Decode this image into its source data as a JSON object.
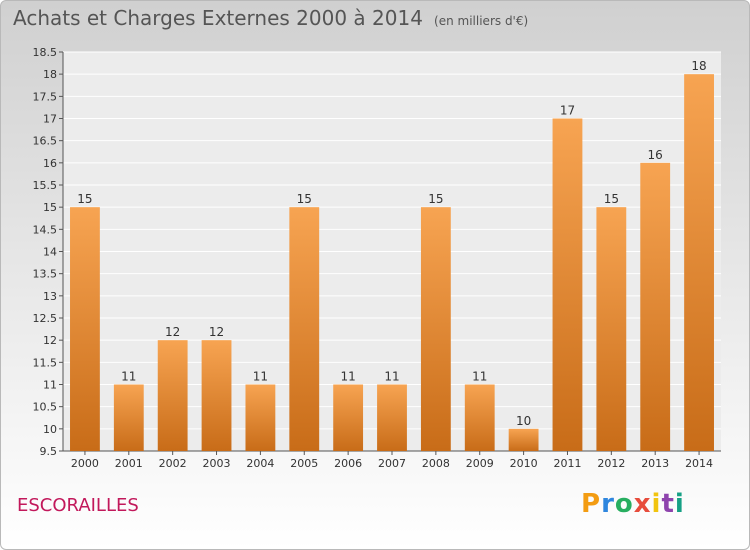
{
  "title": "Achats et Charges Externes 2000 à 2014",
  "unit": "(en milliers d'€)",
  "city": "ESCORAILLES",
  "logo": "Proxiti",
  "colors": {
    "bar_top": "#f7a452",
    "bar_bottom": "#c86c18",
    "city": "#c2185b"
  },
  "chart_data": {
    "type": "bar",
    "title": "Achats et Charges Externes 2000 à 2014",
    "categories": [
      "2000",
      "2001",
      "2002",
      "2003",
      "2004",
      "2005",
      "2006",
      "2007",
      "2008",
      "2009",
      "2010",
      "2011",
      "2012",
      "2013",
      "2014"
    ],
    "values": [
      15,
      11,
      12,
      12,
      11,
      15,
      11,
      11,
      15,
      11,
      10,
      17,
      15,
      16,
      18
    ],
    "ylim": [
      9.5,
      18.5
    ],
    "yticks": [
      9.5,
      10,
      10.5,
      11,
      11.5,
      12,
      12.5,
      13,
      13.5,
      14,
      14.5,
      15,
      15.5,
      16,
      16.5,
      17,
      17.5,
      18,
      18.5
    ],
    "grid": true,
    "xlabel": "",
    "ylabel": ""
  }
}
